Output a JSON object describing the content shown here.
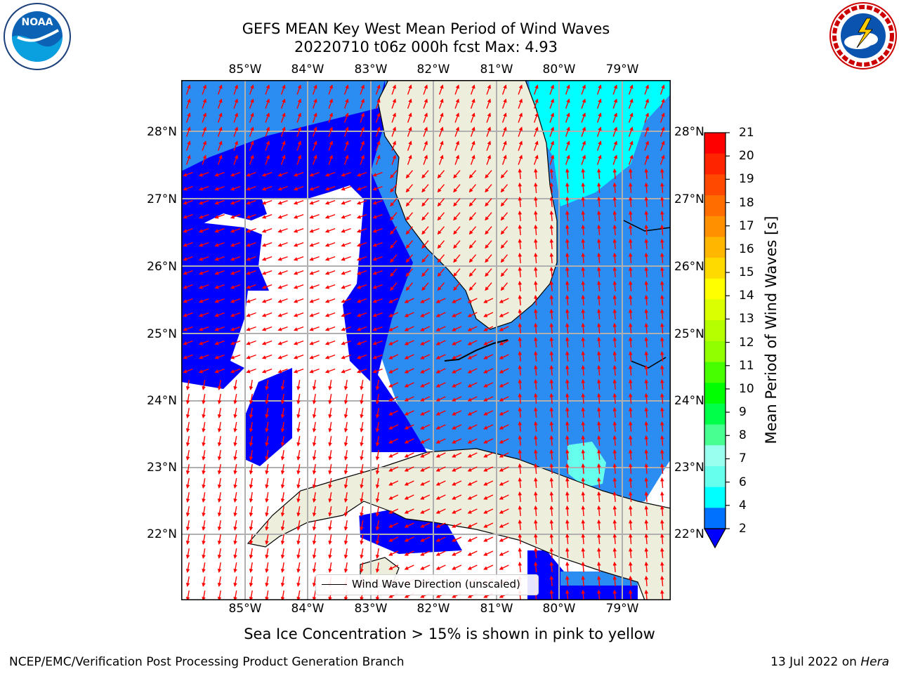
{
  "title": {
    "line1": "GEFS MEAN Key West Mean Period of Wind Waves",
    "line2": "20220710 t06z 000h fcst   Max: 4.93"
  },
  "logos": {
    "left": {
      "text": "NOAA",
      "ring_text": "NATIONAL OCEANIC AND ATMOSPHERIC ADMINISTRATION · U.S. DEPARTMENT OF COMMERCE"
    },
    "right": {
      "ring_text": "NATIONAL WEATHER SERVICE"
    }
  },
  "map": {
    "lon_labels": [
      "85°W",
      "84°W",
      "83°W",
      "82°W",
      "81°W",
      "80°W",
      "79°W"
    ],
    "lat_labels": [
      "28°N",
      "27°N",
      "26°N",
      "25°N",
      "24°N",
      "23°N",
      "22°N"
    ],
    "legend_label": "Wind Wave Direction (unscaled)",
    "colors": {
      "land": "#eeeedd",
      "ocean_2_4": "#0000ff",
      "ocean_light": "#2b8cf2",
      "cyan": "#00ffff",
      "light_cyan": "#66ffee",
      "arrow": "#ff0000"
    }
  },
  "colorbar": {
    "label": "Mean Period of Wind Waves [s]",
    "ticks": [
      "21",
      "20",
      "19",
      "18",
      "17",
      "16",
      "15",
      "14",
      "13",
      "12",
      "11",
      "10",
      "9",
      "8",
      "7",
      "6",
      "4",
      "2"
    ],
    "colors": [
      "#ff0000",
      "#ff2400",
      "#ff4800",
      "#ff6d00",
      "#ff9100",
      "#ffb600",
      "#ffda00",
      "#ffff00",
      "#daff00",
      "#b6ff00",
      "#91ff00",
      "#48ff00",
      "#00ff00",
      "#00ff48",
      "#48ff91",
      "#99ffee",
      "#66ffee",
      "#00ffff",
      "#0070ff"
    ]
  },
  "footer": {
    "note": "Sea Ice Concentration > 15% is shown in pink to yellow",
    "left": "NCEP/EMC/Verification Post Processing Product Generation Branch",
    "right_prefix": "13 Jul 2022 on ",
    "right_host": "Hera"
  }
}
